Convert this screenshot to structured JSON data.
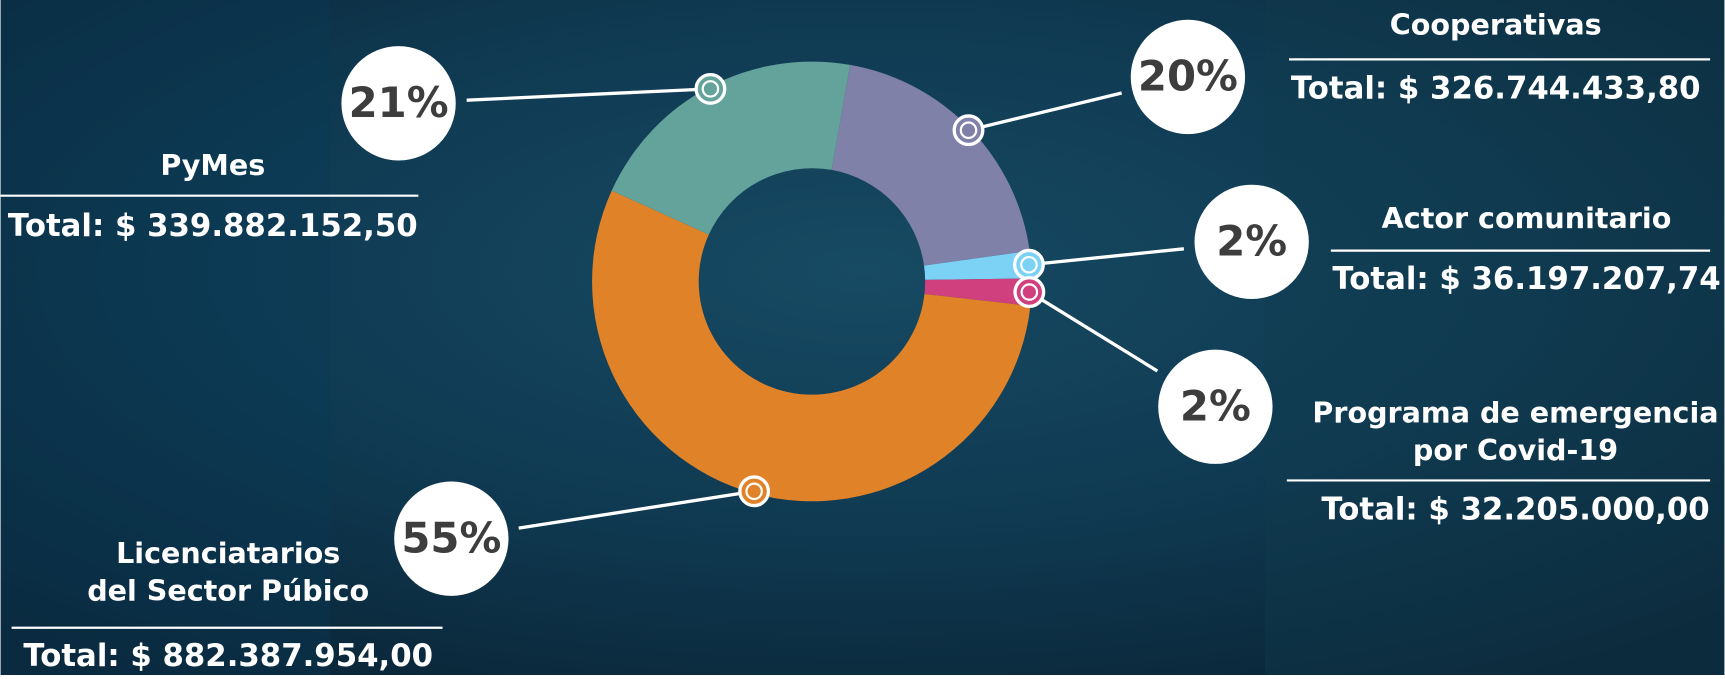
{
  "chart_data": {
    "type": "donut",
    "categories": [
      "Cooperativas",
      "Actor comunitario",
      "Programa de emergencia\npor Covid-19",
      "Licenciatarios\ndel Sector Púbico",
      "PyMes"
    ],
    "values": [
      20,
      2,
      2,
      55,
      21
    ],
    "value_labels": [
      "20%",
      "2%",
      "2%",
      "55%",
      "21%"
    ],
    "totals": [
      "Total: $ 326.744.433,80",
      "Total: $ 36.197.207,74",
      "Total: $ 32.205.000,00",
      "Total: $ 882.387.954,00",
      "Total: $ 339.882.152,50"
    ],
    "colors": [
      "#8081a8",
      "#7cd2f5",
      "#d0407f",
      "#e08228",
      "#63a39c"
    ]
  }
}
